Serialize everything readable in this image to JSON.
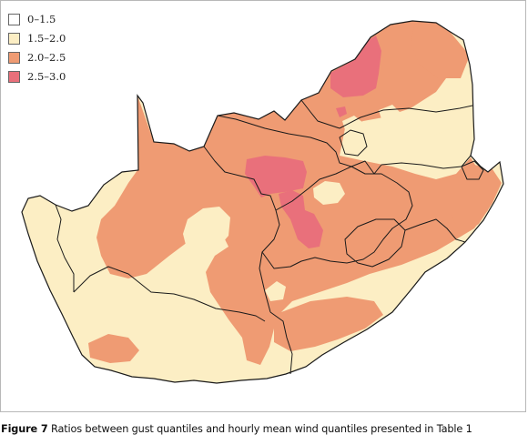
{
  "legend": {
    "items": [
      {
        "label": "0–1.5",
        "color": "#ffffff"
      },
      {
        "label": "1.5–2.0",
        "color": "#fceec4"
      },
      {
        "label": "2.0–2.5",
        "color": "#ef9b73"
      },
      {
        "label": "2.5–3.0",
        "color": "#e9707b"
      }
    ]
  },
  "map": {
    "border_color": "#1a1a1a"
  },
  "caption": {
    "label": "Figure 7",
    "text": " Ratios between gust quantiles and hourly mean wind quantiles presented in Table 1"
  }
}
